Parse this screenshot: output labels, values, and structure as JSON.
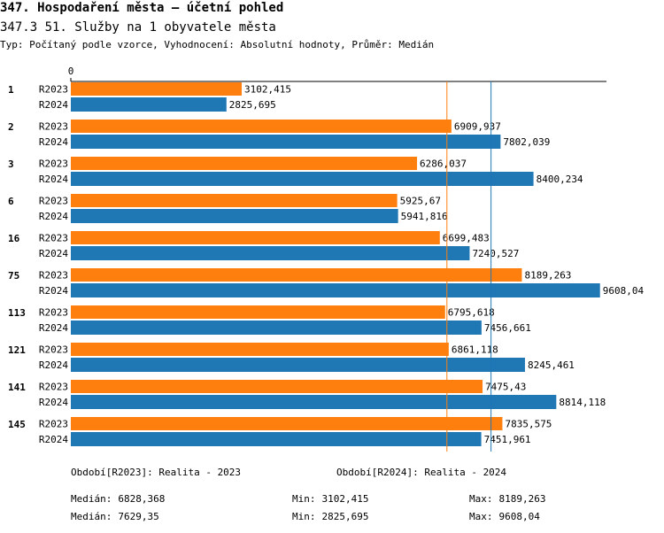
{
  "chart_data": {
    "type": "bar",
    "orientation": "horizontal",
    "title": "347. Hospodaření města – účetní pohled",
    "subtitle": "347.3 51. Služby na 1 obyvatele města",
    "description": "Typ: Počítaný podle vzorce, Vyhodnocení: Absolutní hodnoty, Průměr: Medián",
    "categories": [
      "1",
      "2",
      "3",
      "6",
      "16",
      "75",
      "113",
      "121",
      "141",
      "145"
    ],
    "xlim": [
      0,
      9725
    ],
    "xticks": [
      0
    ],
    "stat_labels": {
      "median": "Medián:",
      "min": "Min:",
      "max": "Max:"
    },
    "series": [
      {
        "name": "Období[R2023]: Realita - 2023",
        "code": "R2023",
        "color": "#ff7f0e",
        "values": [
          3102.415,
          6909.937,
          6286.037,
          5925.67,
          6699.483,
          8189.263,
          6795.618,
          6861.118,
          7475.43,
          7835.575
        ],
        "value_labels": [
          "3102,415",
          "6909,937",
          "6286,037",
          "5925,67",
          "6699,483",
          "8189,263",
          "6795,618",
          "6861,118",
          "7475,43",
          "7835,575"
        ],
        "median": {
          "value": 6828.368,
          "label": "6828,368"
        },
        "min": {
          "value": 3102.415,
          "label": "3102,415"
        },
        "max": {
          "value": 8189.263,
          "label": "8189,263"
        }
      },
      {
        "name": "Období[R2024]: Realita - 2024",
        "code": "R2024",
        "color": "#1f77b4",
        "values": [
          2825.695,
          7802.039,
          8400.234,
          5941.816,
          7240.527,
          9608.04,
          7456.661,
          8245.461,
          8814.118,
          7451.961
        ],
        "value_labels": [
          "2825,695",
          "7802,039",
          "8400,234",
          "5941,816",
          "7240,527",
          "9608,04",
          "7456,661",
          "8245,461",
          "8814,118",
          "7451,961"
        ],
        "median": {
          "value": 7629.35,
          "label": "7629,35"
        },
        "min": {
          "value": 2825.695,
          "label": "2825,695"
        },
        "max": {
          "value": 9608.04,
          "label": "9608,04"
        }
      }
    ]
  }
}
